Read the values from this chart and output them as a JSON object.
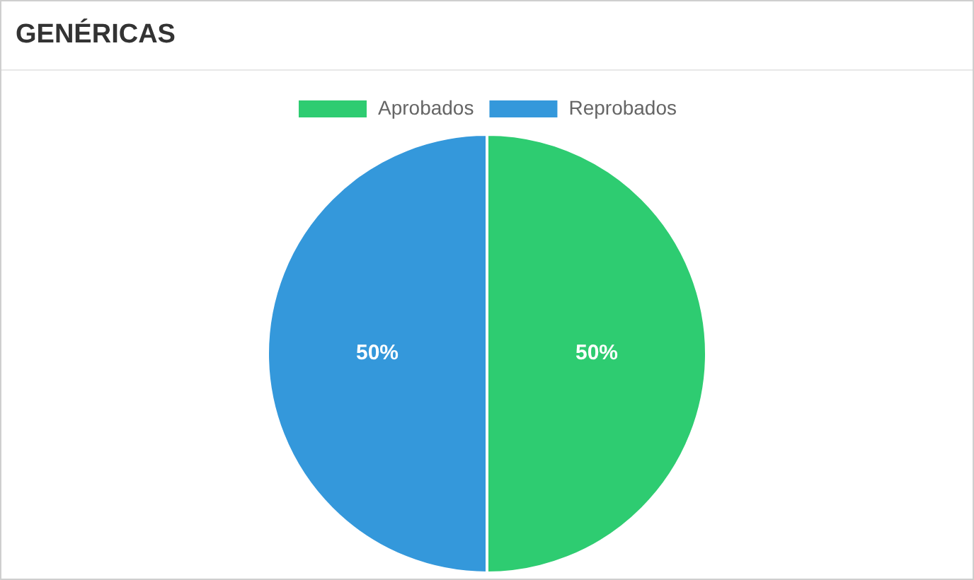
{
  "chart_data": {
    "type": "pie",
    "title": "GENÉRICAS",
    "categories": [
      "Aprobados",
      "Reprobados"
    ],
    "values": [
      50,
      50
    ],
    "colors": [
      "#2ecc71",
      "#3498db"
    ],
    "value_labels": [
      "50%",
      "50%"
    ],
    "legend": "top"
  }
}
